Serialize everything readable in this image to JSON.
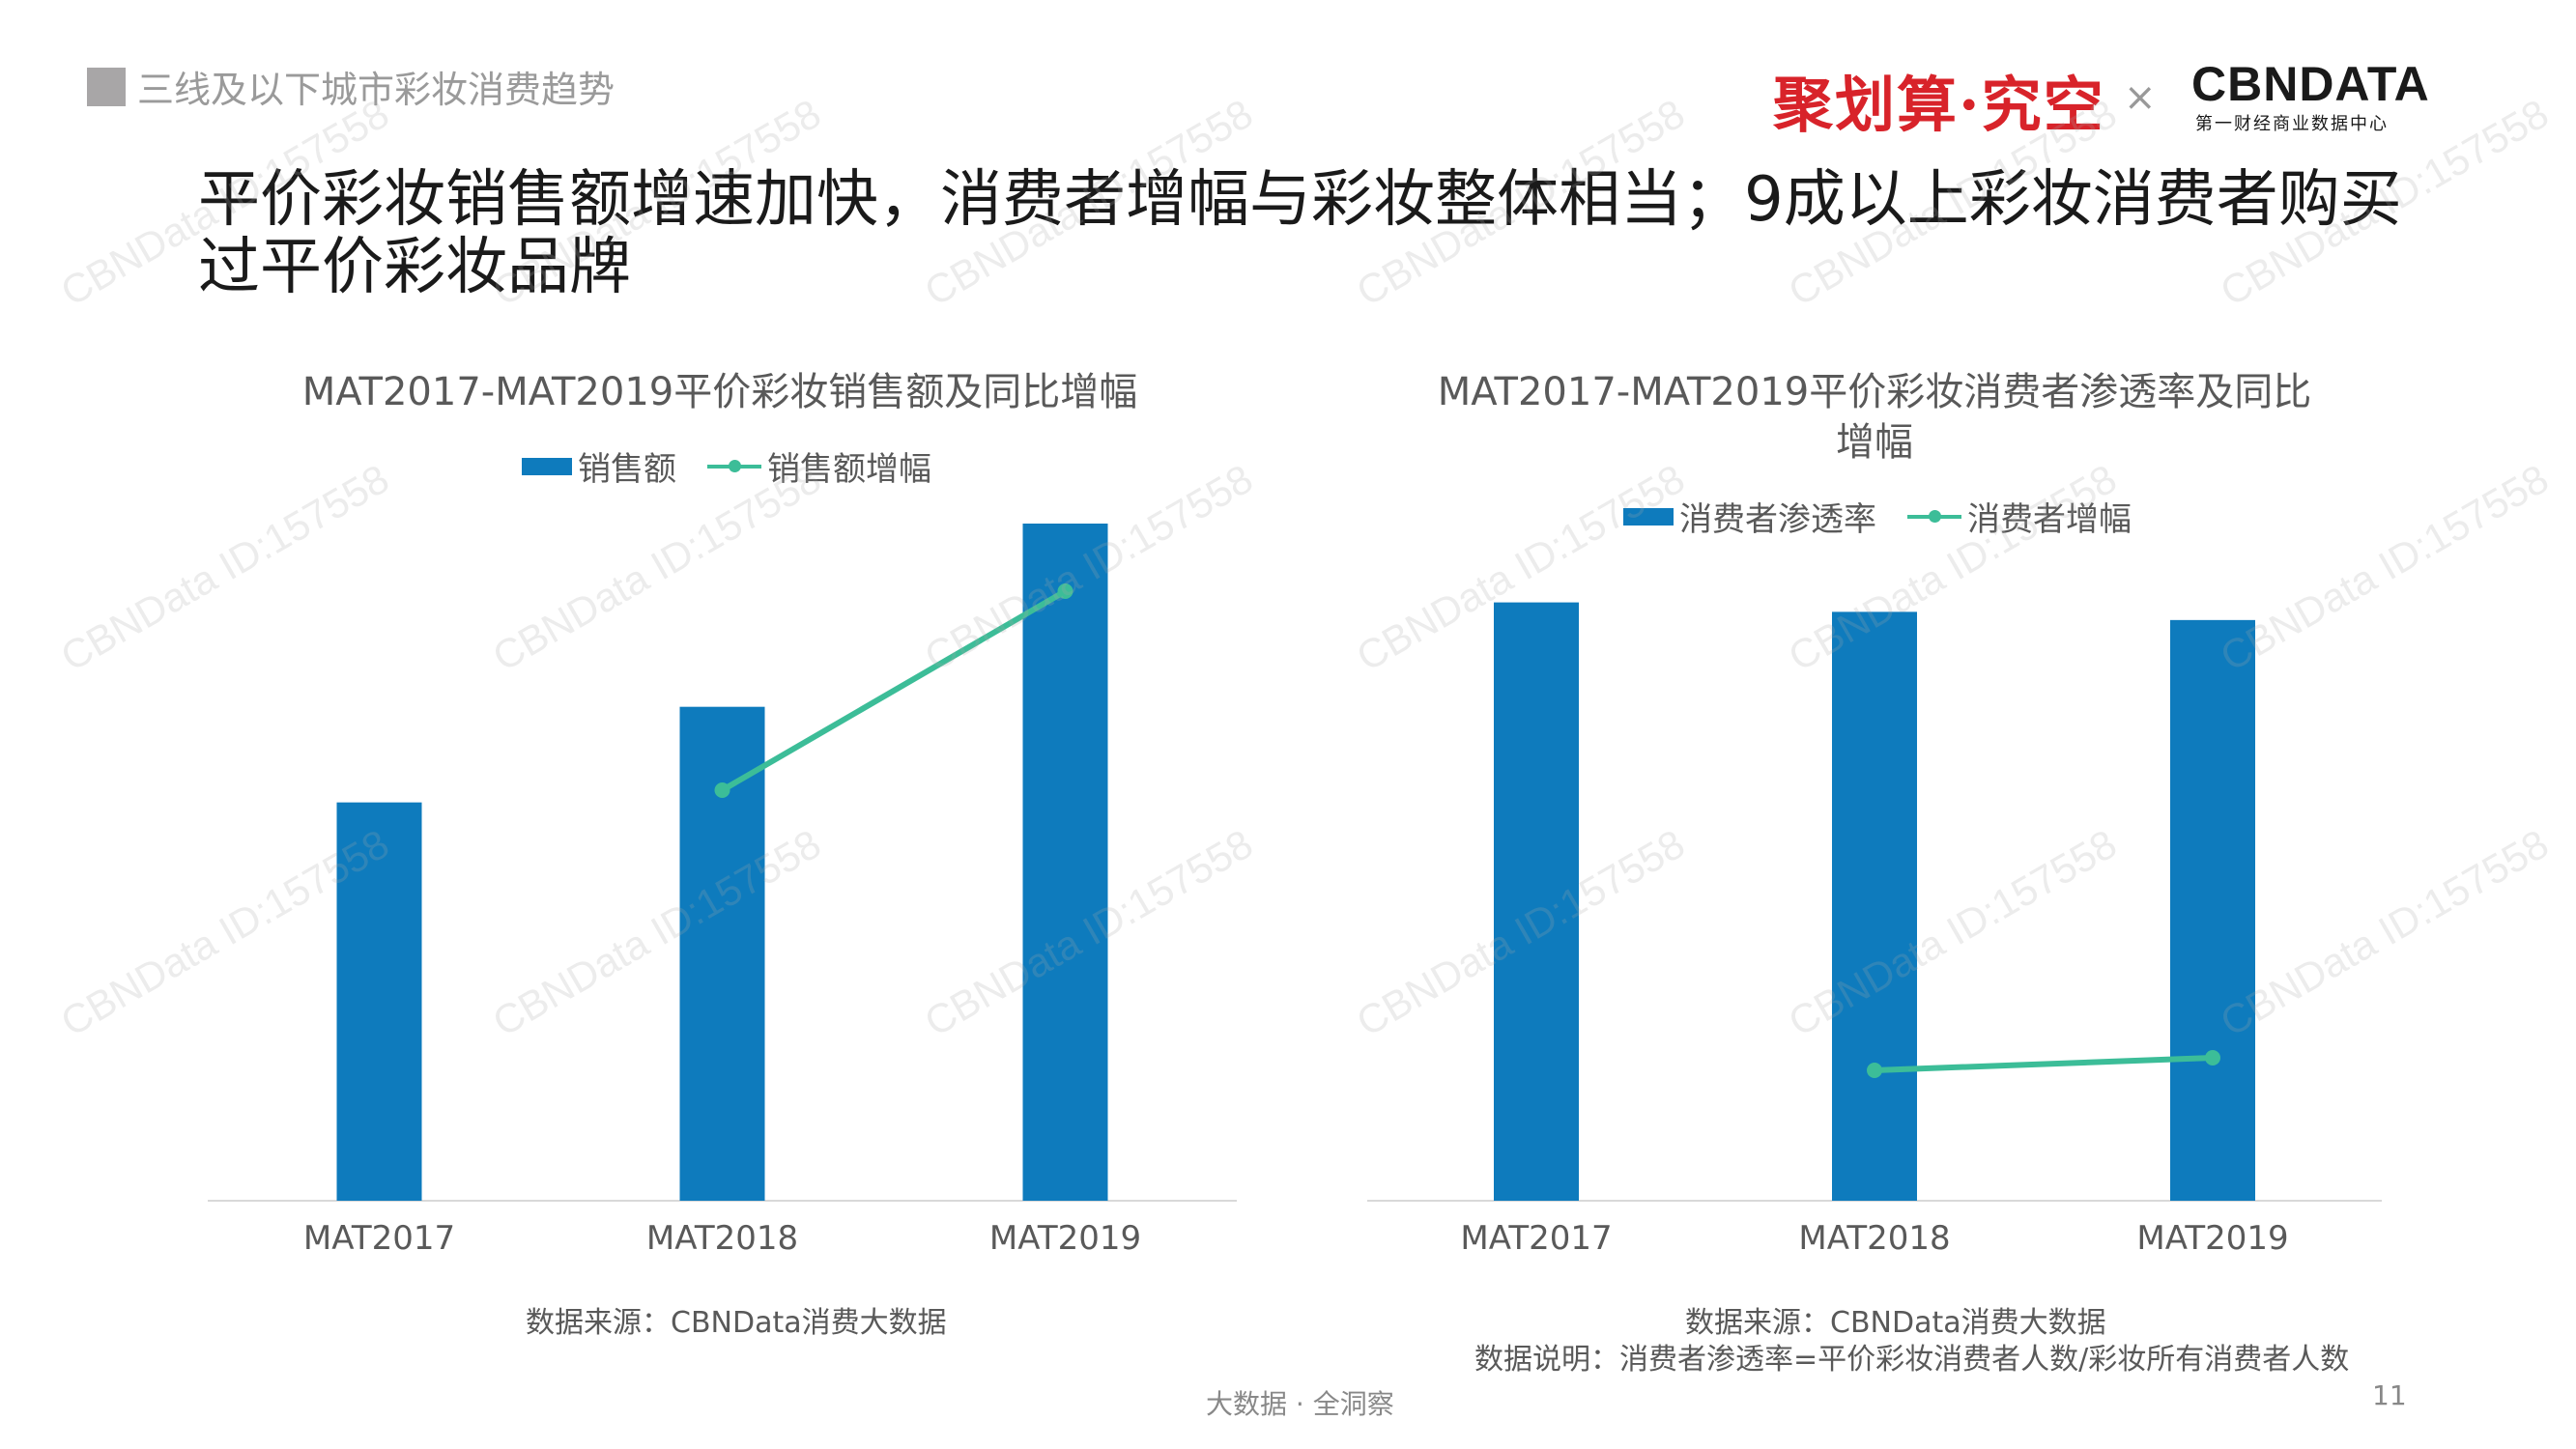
{
  "section": {
    "title": "三线及以下城市彩妆消费趋势"
  },
  "brand": {
    "juhuasuan": "聚划算·究空",
    "times": "×",
    "cbndata": "CBNDATA",
    "cbndata_sub": "第一财经商业数据中心"
  },
  "headline": "平价彩妆销售额增速加快，消费者增幅与彩妆整体相当；9成以上彩妆消费者购买过平价彩妆品牌",
  "footer": {
    "text": "大数据 · 全洞察",
    "page": "11"
  },
  "watermark": {
    "text": "CBNData ID:157558"
  },
  "colors": {
    "bar": "#0e7bbd",
    "line": "#3cbd98",
    "axis": "#d9d9d9",
    "text": "#595959"
  },
  "chart_data": [
    {
      "type": "bar",
      "title": "MAT2017-MAT2019平价彩妆销售额及同比增幅",
      "categories": [
        "MAT2017",
        "MAT2018",
        "MAT2019"
      ],
      "series": [
        {
          "name": "销售额",
          "kind": "bar",
          "values": [
            100,
            124,
            170
          ]
        },
        {
          "name": "销售额增幅",
          "kind": "line",
          "values": [
            null,
            24,
            37
          ]
        }
      ],
      "legend": "top",
      "grid": false,
      "source": "数据来源：CBNData消费大数据"
    },
    {
      "type": "bar",
      "title": "MAT2017-MAT2019平价彩妆消费者渗透率及同比增幅",
      "categories": [
        "MAT2017",
        "MAT2018",
        "MAT2019"
      ],
      "series": [
        {
          "name": "消费者渗透率",
          "kind": "bar",
          "values": [
            95,
            93.5,
            92.2
          ]
        },
        {
          "name": "消费者增幅",
          "kind": "line",
          "values": [
            null,
            21,
            23
          ]
        }
      ],
      "legend": "top",
      "grid": false,
      "source": "数据来源：CBNData消费大数据",
      "note": "数据说明：消费者渗透率=平价彩妆消费者人数/彩妆所有消费者人数"
    }
  ]
}
